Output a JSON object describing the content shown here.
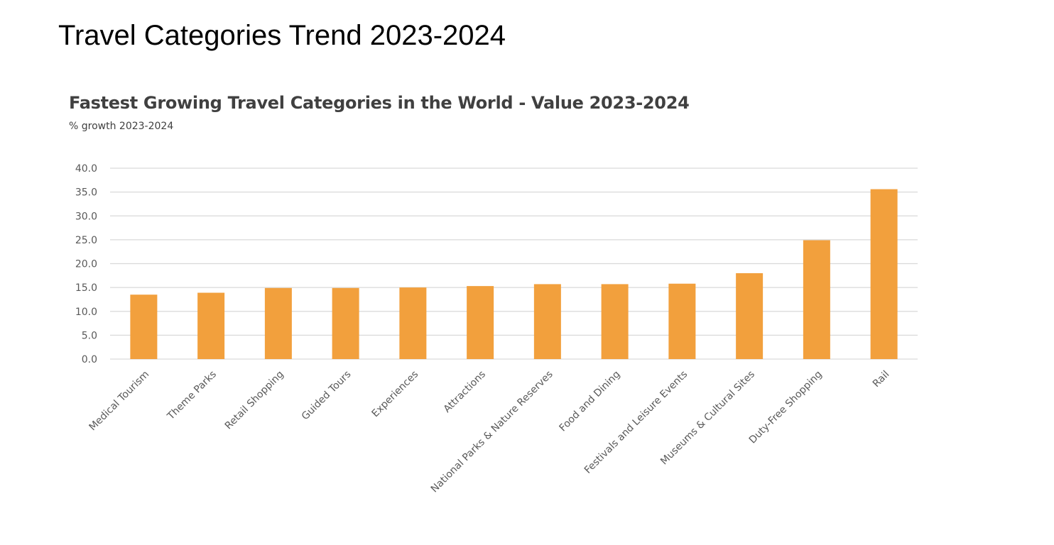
{
  "slide_title": "Travel Categories Trend 2023-2024",
  "chart_data": {
    "type": "bar",
    "title": "Fastest Growing Travel Categories in the World - Value 2023-2024",
    "subtitle": "% growth 2023-2024",
    "xlabel": "",
    "ylabel": "",
    "categories": [
      "Medical Tourism",
      "Theme Parks",
      "Retail Shopping",
      "Guided Tours",
      "Experiences",
      "Attractions",
      "National Parks & Nature Reserves",
      "Food and Dining",
      "Festivals and Leisure Events",
      "Museums & Cultural Sites",
      "Duty-Free Shopping",
      "Rail"
    ],
    "values": [
      13.5,
      13.9,
      14.9,
      14.9,
      15.0,
      15.3,
      15.7,
      15.7,
      15.8,
      18.0,
      24.9,
      35.6
    ],
    "ylim": [
      0,
      40
    ],
    "yticks": [
      "0.0",
      "5.0",
      "10.0",
      "15.0",
      "20.0",
      "25.0",
      "30.0",
      "35.0",
      "40.0"
    ],
    "grid": true,
    "legend": "none",
    "bar_color": "#F2A03D"
  }
}
